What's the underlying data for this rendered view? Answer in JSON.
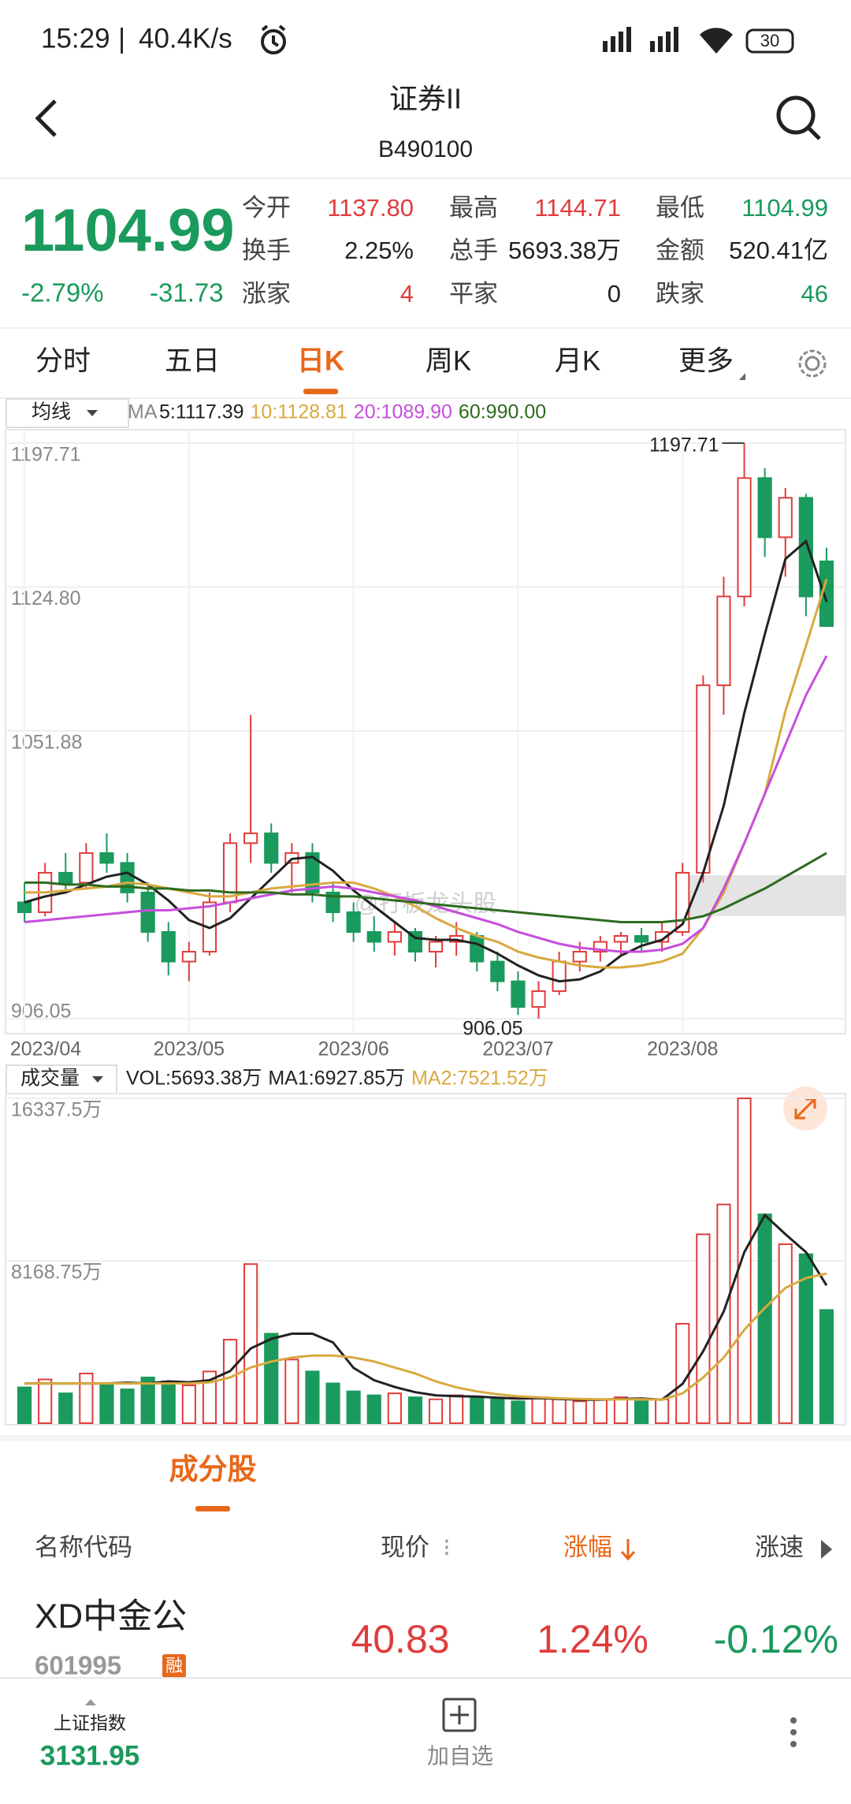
{
  "status_bar": {
    "time": "15:29",
    "speed": "40.4K/s",
    "battery": "30"
  },
  "header": {
    "title": "证券II",
    "code": "B490100"
  },
  "quote": {
    "price": "1104.99",
    "change_pct": "-2.79%",
    "change": "-31.73",
    "stats": [
      {
        "label": "今开",
        "value": "1137.80",
        "color": "#e03c3c"
      },
      {
        "label": "最高",
        "value": "1144.71",
        "color": "#e03c3c"
      },
      {
        "label": "最低",
        "value": "1104.99",
        "color": "#1a9a5c"
      },
      {
        "label": "换手",
        "value": "2.25%",
        "color": "#222222"
      },
      {
        "label": "总手",
        "value": "5693.38万",
        "color": "#222222"
      },
      {
        "label": "金额",
        "value": "520.41亿",
        "color": "#222222"
      },
      {
        "label": "涨家",
        "value": "4",
        "color": "#e03c3c"
      },
      {
        "label": "平家",
        "value": "0",
        "color": "#222222"
      },
      {
        "label": "跌家",
        "value": "46",
        "color": "#1a9a5c"
      }
    ]
  },
  "tabs": [
    "分时",
    "五日",
    "日K",
    "周K",
    "月K",
    "更多"
  ],
  "active_tab": 2,
  "chart_data": [
    {
      "type": "candlestick",
      "ma_button": "均线",
      "ma_prefix": "MA",
      "up_color": "#e03c3c",
      "down_color": "#1a9a5c",
      "categories": [
        "2023/04",
        null,
        null,
        null,
        null,
        null,
        null,
        null,
        "2023/05",
        null,
        null,
        null,
        null,
        null,
        null,
        null,
        "2023/06",
        null,
        null,
        null,
        null,
        null,
        null,
        null,
        "2023/07",
        null,
        null,
        null,
        null,
        null,
        null,
        null,
        "2023/08",
        null,
        null,
        null,
        null,
        null,
        null,
        null
      ],
      "open": [
        965,
        960,
        980,
        975,
        990,
        985,
        970,
        950,
        935,
        940,
        965,
        995,
        1000,
        985,
        990,
        970,
        960,
        950,
        945,
        950,
        940,
        945,
        948,
        935,
        925,
        912,
        920,
        935,
        940,
        945,
        948,
        945,
        950,
        980,
        1075,
        1120,
        1180,
        1150,
        1170,
        1137.8
      ],
      "high": [
        975,
        985,
        990,
        995,
        1000,
        990,
        975,
        955,
        945,
        970,
        1000,
        1060,
        1005,
        995,
        995,
        975,
        965,
        958,
        955,
        952,
        948,
        955,
        950,
        940,
        930,
        925,
        940,
        945,
        948,
        950,
        952,
        955,
        985,
        1080,
        1130,
        1197.71,
        1185,
        1175,
        1172,
        1144.71
      ],
      "low": [
        955,
        958,
        970,
        972,
        980,
        965,
        945,
        928,
        925,
        938,
        960,
        985,
        980,
        970,
        965,
        955,
        945,
        940,
        938,
        935,
        932,
        938,
        930,
        920,
        908,
        906.05,
        918,
        930,
        935,
        938,
        940,
        940,
        948,
        975,
        1060,
        1115,
        1140,
        1130,
        1110,
        1104.99
      ],
      "close": [
        960,
        980,
        975,
        990,
        985,
        970,
        950,
        935,
        940,
        965,
        995,
        1000,
        985,
        990,
        970,
        960,
        950,
        945,
        950,
        940,
        945,
        948,
        935,
        925,
        912,
        920,
        935,
        940,
        945,
        948,
        945,
        950,
        980,
        1075,
        1120,
        1180,
        1150,
        1170,
        1120,
        1104.99
      ],
      "series": [
        {
          "name": "5:1117.39",
          "color": "#222222",
          "values": [
            965,
            968,
            970,
            974,
            978,
            980,
            974,
            966,
            956,
            952,
            957,
            967,
            977,
            987,
            988,
            981,
            971,
            963,
            955,
            947,
            946,
            946,
            944,
            939,
            933,
            928,
            925,
            926,
            930,
            938,
            943,
            946,
            954,
            980,
            1014,
            1061,
            1101,
            1139,
            1148,
            1117.39
          ]
        },
        {
          "name": "10:1128.81",
          "color": "#d9a93f",
          "values": [
            970,
            970,
            971,
            972,
            973,
            975,
            974,
            972,
            970,
            968,
            968,
            970,
            972,
            973,
            974,
            975,
            975,
            972,
            968,
            963,
            957,
            952,
            948,
            945,
            940,
            937,
            935,
            933,
            932,
            932,
            933,
            935,
            939,
            952,
            970,
            995,
            1020,
            1062,
            1095,
            1128.81
          ]
        },
        {
          "name": "20:1089.90",
          "color": "#c64fdc",
          "values": [
            955,
            956,
            957,
            958,
            959,
            960,
            961,
            961,
            962,
            963,
            965,
            967,
            969,
            971,
            972,
            973,
            972,
            970,
            968,
            966,
            963,
            960,
            957,
            954,
            950,
            947,
            944,
            942,
            941,
            940,
            940,
            941,
            944,
            952,
            972,
            995,
            1020,
            1045,
            1070,
            1089.9
          ]
        },
        {
          "name": "60:990.00",
          "color": "#2e6b1f",
          "values": [
            975,
            975,
            974,
            974,
            973,
            973,
            972,
            972,
            971,
            971,
            970,
            970,
            970,
            969,
            969,
            968,
            968,
            967,
            966,
            965,
            964,
            963,
            962,
            961,
            960,
            959,
            958,
            957,
            956,
            955,
            955,
            955,
            956,
            958,
            962,
            967,
            972,
            978,
            984,
            990.0
          ]
        }
      ],
      "ylim": [
        906.05,
        1197.71
      ],
      "yticks": [
        1197.71,
        {
          "value": 1124.8,
          "label": "1124.80"
        },
        1051.88,
        906.05
      ],
      "high_label": "1197.71",
      "low_label": "906.05",
      "watermark": "@打板龙头股"
    },
    {
      "type": "bar",
      "volume_button": "成交量",
      "values": [
        1800,
        2200,
        1500,
        2500,
        2000,
        1700,
        2300,
        2100,
        1900,
        2600,
        4200,
        8000,
        4500,
        3200,
        2600,
        2000,
        1600,
        1400,
        1500,
        1300,
        1200,
        1400,
        1300,
        1200,
        1100,
        1300,
        1200,
        1100,
        1200,
        1300,
        1100,
        1200,
        5000,
        9500,
        11000,
        16337.5,
        10500,
        9000,
        8500,
        5693.38
      ],
      "name": "VOL:5693.38万",
      "name_color": "#222222",
      "series": [
        {
          "name": "MA1:6927.85万",
          "color": "#222222",
          "values": [
            2000,
            2000,
            2000,
            2000,
            2000,
            2040,
            2000,
            2100,
            2060,
            2160,
            2620,
            3760,
            4240,
            4500,
            4500,
            4060,
            2780,
            2160,
            1820,
            1560,
            1400,
            1360,
            1340,
            1280,
            1240,
            1260,
            1220,
            1180,
            1180,
            1220,
            1240,
            1180,
            1980,
            3620,
            5620,
            8600,
            10460,
            9500,
            8600,
            6927.85
          ]
        },
        {
          "name": "MA2:7521.52万",
          "color": "#d9a93f",
          "values": [
            2000,
            2000,
            2000,
            2000,
            2000,
            2000,
            2000,
            2000,
            2000,
            2050,
            2300,
            2800,
            3100,
            3300,
            3400,
            3400,
            3300,
            3100,
            2800,
            2500,
            2100,
            1800,
            1600,
            1450,
            1350,
            1300,
            1250,
            1220,
            1200,
            1200,
            1200,
            1180,
            1500,
            2300,
            3300,
            4700,
            5800,
            6800,
            7300,
            7521.52
          ]
        }
      ],
      "ylim": [
        0,
        16337.5
      ],
      "yticks": [
        {
          "value": 16337.5,
          "label": "16337.5万"
        },
        {
          "value": 8168.75,
          "label": "8168.75万"
        }
      ]
    }
  ],
  "constituents": {
    "title": "成分股",
    "columns": [
      "名称代码",
      "现价",
      "涨幅",
      "涨速"
    ],
    "rows": [
      {
        "name": "XD中金公",
        "code": "601995",
        "badge": "融",
        "price": "40.83",
        "change_pct": "1.24%",
        "speed": "-0.12%"
      }
    ]
  },
  "bottom_bar": {
    "index_name": "上证指数",
    "index_value": "3131.95",
    "add": "加自选"
  }
}
